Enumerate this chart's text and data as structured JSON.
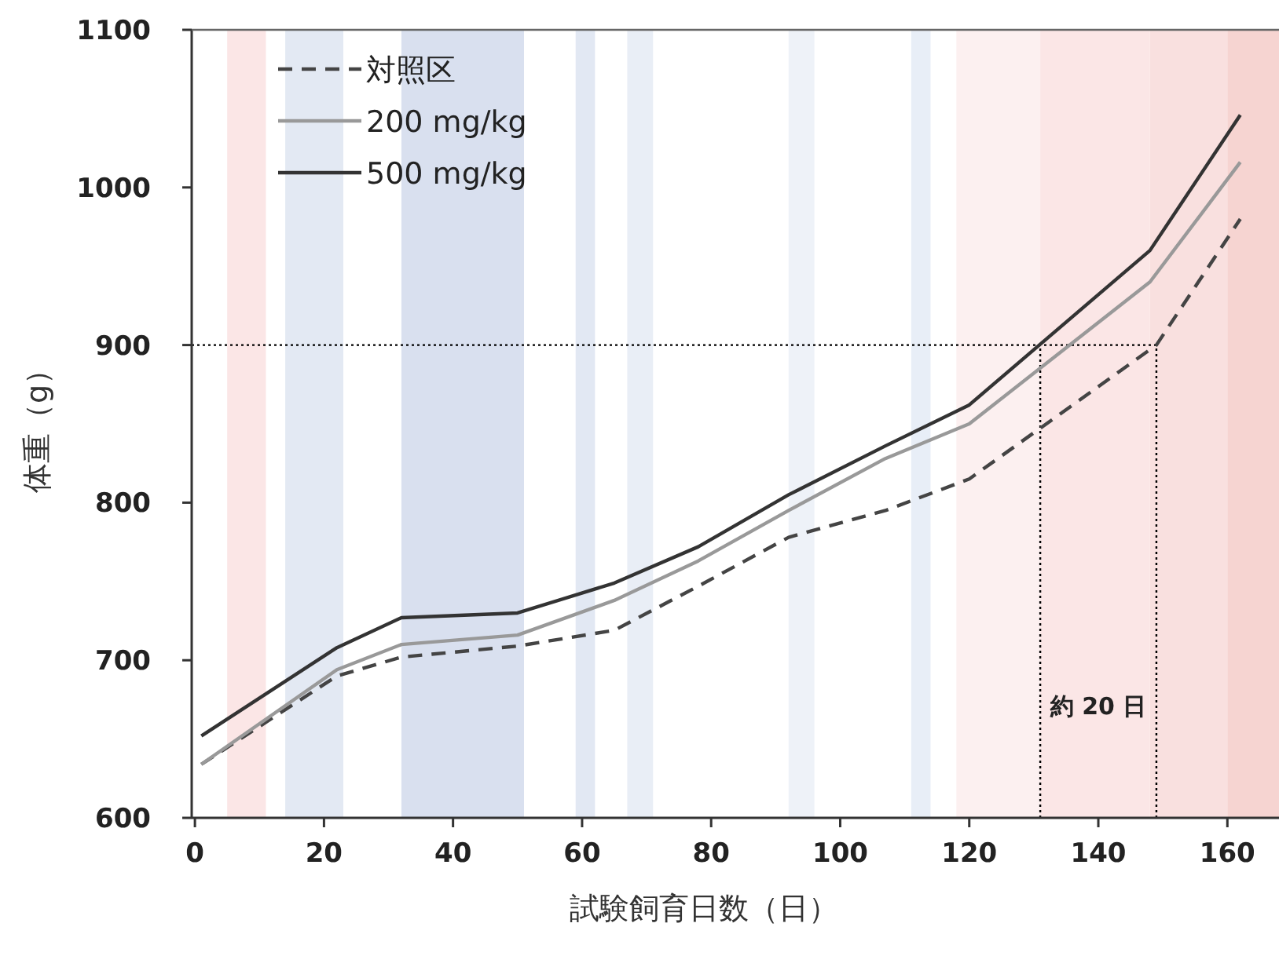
{
  "chart_data": {
    "type": "line",
    "xlabel": "試験飼育日数（日）",
    "ylabel": "体重（g）",
    "xlim": [
      -0.5,
      168
    ],
    "xticks": [
      0,
      20,
      40,
      60,
      80,
      100,
      120,
      140,
      160
    ],
    "ylim": [
      600,
      1100
    ],
    "yticks": [
      600,
      700,
      800,
      900,
      1000,
      1100
    ],
    "legend": "top left",
    "x": [
      1,
      22,
      32,
      50,
      65,
      78,
      92,
      107,
      120,
      148,
      162
    ],
    "series": [
      {
        "name": "対照区",
        "color": "#444444",
        "line_style": "dashed",
        "x": [
          1,
          22,
          32,
          50,
          65,
          78,
          92,
          107,
          120,
          149,
          162
        ],
        "values": [
          634,
          690,
          702,
          709,
          719,
          747,
          778,
          795,
          815,
          900,
          980
        ]
      },
      {
        "name": "200 mg/kg",
        "color": "#999999",
        "line_style": "solid",
        "values": [
          634,
          694,
          710,
          716,
          738,
          763,
          795,
          828,
          850,
          940,
          1016
        ]
      },
      {
        "name": "500 mg/kg",
        "color": "#333333",
        "line_style": "solid",
        "values": [
          652,
          708,
          727,
          730,
          749,
          772,
          805,
          836,
          862,
          960,
          1046
        ]
      }
    ],
    "ref_lines": [
      {
        "axis": "y",
        "value": 900,
        "line_style": "dotted",
        "color": "#000000"
      },
      {
        "axis": "x",
        "value": 131,
        "line_style": "dotted",
        "color": "#000000"
      },
      {
        "axis": "x",
        "value": 149,
        "line_style": "dotted",
        "color": "#000000"
      }
    ],
    "bands": [
      {
        "axis": "x",
        "from": 5,
        "to": 11,
        "color": "#fbe6e6"
      },
      {
        "axis": "x",
        "from": 14,
        "to": 23,
        "color": "#e3e9f3"
      },
      {
        "axis": "x",
        "from": 32,
        "to": 51,
        "color": "#d9e0ef"
      },
      {
        "axis": "x",
        "from": 59,
        "to": 62,
        "color": "#e2e8f3"
      },
      {
        "axis": "x",
        "from": 67,
        "to": 71,
        "color": "#e9eef6"
      },
      {
        "axis": "x",
        "from": 92,
        "to": 96,
        "color": "#eef2f8"
      },
      {
        "axis": "x",
        "from": 111,
        "to": 114,
        "color": "#e8eef7"
      },
      {
        "axis": "x",
        "from": 118,
        "to": 131,
        "color": "#fcf0f0"
      },
      {
        "axis": "x",
        "from": 131,
        "to": 148,
        "color": "#fbe6e6"
      },
      {
        "axis": "x",
        "from": 148,
        "to": 160,
        "color": "#f9e0df"
      },
      {
        "axis": "x",
        "from": 160,
        "to": 168,
        "color": "#f6d4d1"
      }
    ],
    "annotations": [
      "約 20 日"
    ]
  }
}
